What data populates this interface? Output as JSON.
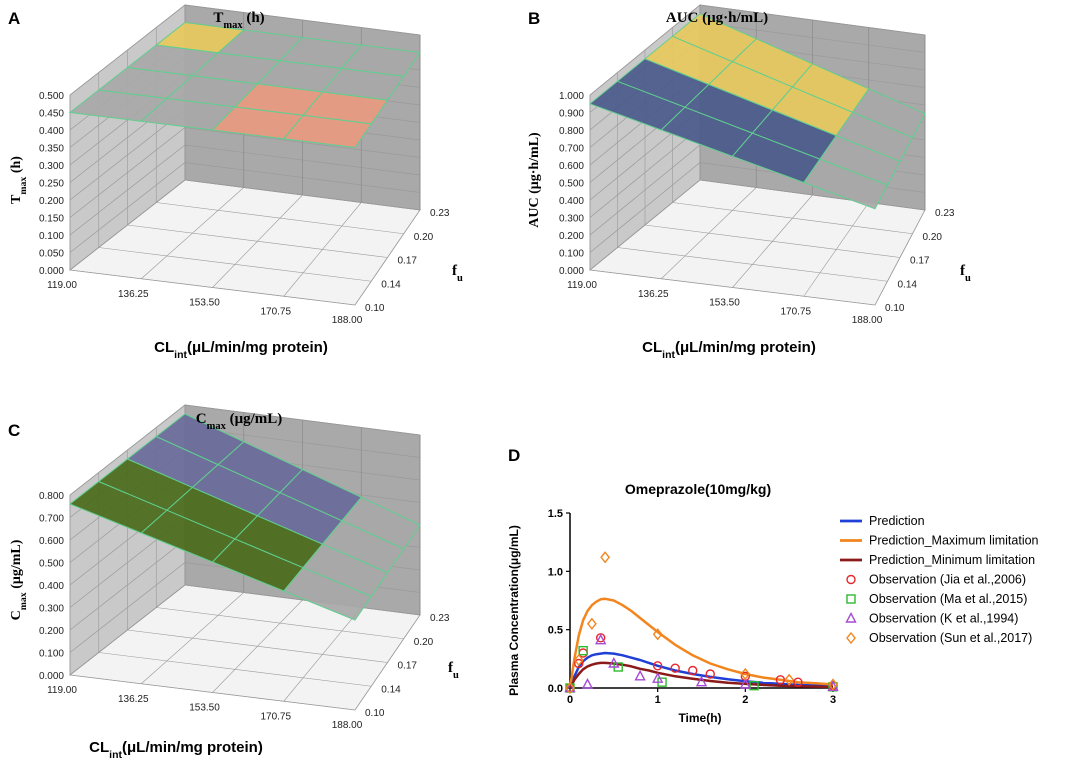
{
  "colors": {
    "wall": "#a9a9a9",
    "wall_side": "#c9c9c9",
    "floor": "#e6e6e6",
    "grid": "#9a9a9a",
    "mesh": "#5fcf8f",
    "salmon": "#e89a80",
    "yellow": "#e8c95e",
    "gray_surface": "#a8a8a8",
    "olive_surface": "#8c8c3c",
    "blue": "#1f3fd6",
    "orange": "#f2851e",
    "darkred": "#8b1a1a",
    "red": "#e8262a",
    "green": "#2eb82e",
    "purple": "#a44bd4",
    "orange_obs": "#f2851e",
    "panel_text": "#000000"
  },
  "chart_data": [
    {
      "panel": "A",
      "type": "surface3d",
      "title_main": "T",
      "title_sub": "max",
      "title_unit": " (h)",
      "zlabel_main": "T",
      "zlabel_sub": "max",
      "zlabel_unit": " (h)",
      "xlabel_main": "CL",
      "xlabel_sub": "int",
      "xlabel_unit": "(μL/min/mg protein)",
      "ylabel_main": "f",
      "ylabel_sub": "u",
      "z_ticks": [
        "0.000",
        "0.050",
        "0.100",
        "0.150",
        "0.200",
        "0.250",
        "0.300",
        "0.350",
        "0.400",
        "0.450",
        "0.500"
      ],
      "x_ticks": [
        "119.00",
        "136.25",
        "153.50",
        "170.75",
        "188.00"
      ],
      "y_ticks": [
        "0.10",
        "0.14",
        "0.17",
        "0.20",
        "0.23"
      ],
      "zlim": [
        0,
        0.5
      ],
      "surface_level": 0.45
    },
    {
      "panel": "B",
      "type": "surface3d",
      "title_main": "AUC  (μg·h/mL)",
      "zlabel_main": "AUC (μg·h/mL)",
      "xlabel_main": "CL",
      "xlabel_sub": "int",
      "xlabel_unit": "(μL/min/mg protein)",
      "ylabel_main": "f",
      "ylabel_sub": "u",
      "z_ticks": [
        "0.000",
        "0.100",
        "0.200",
        "0.300",
        "0.400",
        "0.500",
        "0.600",
        "0.700",
        "0.800",
        "0.900",
        "1.000"
      ],
      "x_ticks": [
        "119.00",
        "136.25",
        "153.50",
        "170.75",
        "188.00"
      ],
      "y_ticks": [
        "0.10",
        "0.14",
        "0.17",
        "0.20",
        "0.23"
      ],
      "zlim": [
        0,
        1.0
      ],
      "surface_start": 0.95,
      "surface_end": 0.55
    },
    {
      "panel": "C",
      "type": "surface3d",
      "title_main": "C",
      "title_sub": "max",
      "title_unit": " (μg/mL)",
      "zlabel_main": "C",
      "zlabel_sub": "max",
      "zlabel_unit": " (μg/mL)",
      "xlabel_main": "CL",
      "xlabel_sub": "int",
      "xlabel_unit": "(μL/min/mg protein)",
      "ylabel_main": "f",
      "ylabel_sub": "u",
      "z_ticks": [
        "0.000",
        "0.100",
        "0.200",
        "0.300",
        "0.400",
        "0.500",
        "0.600",
        "0.700",
        "0.800"
      ],
      "x_ticks": [
        "119.00",
        "136.25",
        "153.50",
        "170.75",
        "188.00"
      ],
      "y_ticks": [
        "0.10",
        "0.14",
        "0.17",
        "0.20",
        "0.23"
      ],
      "zlim": [
        0,
        0.8
      ],
      "surface_start": 0.76,
      "surface_end": 0.4
    },
    {
      "panel": "D",
      "type": "line",
      "title": "Omeprazole(10mg/kg)",
      "xlabel": "Time(h)",
      "ylabel": "Plasma Concentration(μg/mL)",
      "xlim": [
        0,
        3
      ],
      "ylim": [
        0,
        1.5
      ],
      "x_ticks": [
        "0",
        "1",
        "2",
        "3"
      ],
      "y_ticks": [
        "0.0",
        "0.5",
        "1.0",
        "1.5"
      ],
      "series": [
        {
          "name": "Prediction",
          "kind": "line",
          "color": "#1f3fd6",
          "x": [
            0,
            0.05,
            0.1,
            0.15,
            0.2,
            0.25,
            0.3,
            0.35,
            0.4,
            0.5,
            0.6,
            0.7,
            0.8,
            0.9,
            1.0,
            1.2,
            1.4,
            1.6,
            1.8,
            2.0,
            2.2,
            2.4,
            2.6,
            2.8,
            3.0
          ],
          "y": [
            0,
            0.1,
            0.18,
            0.23,
            0.26,
            0.28,
            0.29,
            0.295,
            0.3,
            0.295,
            0.28,
            0.26,
            0.24,
            0.215,
            0.19,
            0.15,
            0.12,
            0.095,
            0.075,
            0.058,
            0.045,
            0.035,
            0.027,
            0.021,
            0.016
          ]
        },
        {
          "name": "Prediction_Maximum limitation",
          "kind": "line",
          "color": "#f2851e",
          "x": [
            0,
            0.05,
            0.1,
            0.15,
            0.2,
            0.25,
            0.3,
            0.35,
            0.4,
            0.5,
            0.6,
            0.7,
            0.8,
            0.9,
            1.0,
            1.2,
            1.4,
            1.6,
            1.8,
            2.0,
            2.2,
            2.4,
            2.6,
            2.8,
            3.0
          ],
          "y": [
            0,
            0.25,
            0.45,
            0.58,
            0.66,
            0.71,
            0.74,
            0.76,
            0.765,
            0.75,
            0.71,
            0.66,
            0.6,
            0.54,
            0.48,
            0.37,
            0.28,
            0.21,
            0.16,
            0.12,
            0.09,
            0.07,
            0.05,
            0.04,
            0.03
          ]
        },
        {
          "name": "Prediction_Minimum limitation",
          "kind": "line",
          "color": "#8b1a1a",
          "x": [
            0,
            0.05,
            0.1,
            0.15,
            0.2,
            0.25,
            0.3,
            0.35,
            0.4,
            0.5,
            0.6,
            0.7,
            0.8,
            0.9,
            1.0,
            1.2,
            1.4,
            1.6,
            1.8,
            2.0,
            2.2,
            2.4,
            2.6,
            2.8,
            3.0
          ],
          "y": [
            0,
            0.07,
            0.12,
            0.16,
            0.185,
            0.2,
            0.21,
            0.215,
            0.215,
            0.21,
            0.2,
            0.185,
            0.165,
            0.15,
            0.13,
            0.1,
            0.08,
            0.06,
            0.045,
            0.035,
            0.027,
            0.02,
            0.015,
            0.012,
            0.009
          ]
        },
        {
          "name": "Observation (Jia et al.,2006)",
          "kind": "circle",
          "color": "#e8262a",
          "x": [
            0,
            0.1,
            0.15,
            0.35,
            1.0,
            1.2,
            1.4,
            1.6,
            2.0,
            2.4,
            2.6,
            3.0
          ],
          "y": [
            0,
            0.21,
            0.3,
            0.43,
            0.19,
            0.17,
            0.15,
            0.12,
            0.1,
            0.07,
            0.05,
            0.02
          ]
        },
        {
          "name": "Observation (Ma et al.,2015)",
          "kind": "square",
          "color": "#2eb82e",
          "x": [
            0,
            0.15,
            0.55,
            1.05,
            2.1,
            3.0
          ],
          "y": [
            0,
            0.32,
            0.18,
            0.05,
            0.02,
            0.01
          ]
        },
        {
          "name": "Observation (K et al.,1994)",
          "kind": "triangle",
          "color": "#a44bd4",
          "x": [
            0,
            0.2,
            0.35,
            0.5,
            0.8,
            1.0,
            1.5,
            2.0,
            3.0
          ],
          "y": [
            0,
            0.03,
            0.41,
            0.21,
            0.1,
            0.08,
            0.05,
            0.03,
            0.01
          ]
        },
        {
          "name": "Observation (Sun et al.,2017)",
          "kind": "diamond",
          "color": "#f2851e",
          "x": [
            0,
            0.1,
            0.25,
            0.4,
            1.0,
            2.0,
            2.5,
            3.0
          ],
          "y": [
            0,
            0.24,
            0.55,
            1.12,
            0.46,
            0.12,
            0.07,
            0.03
          ]
        }
      ]
    }
  ]
}
